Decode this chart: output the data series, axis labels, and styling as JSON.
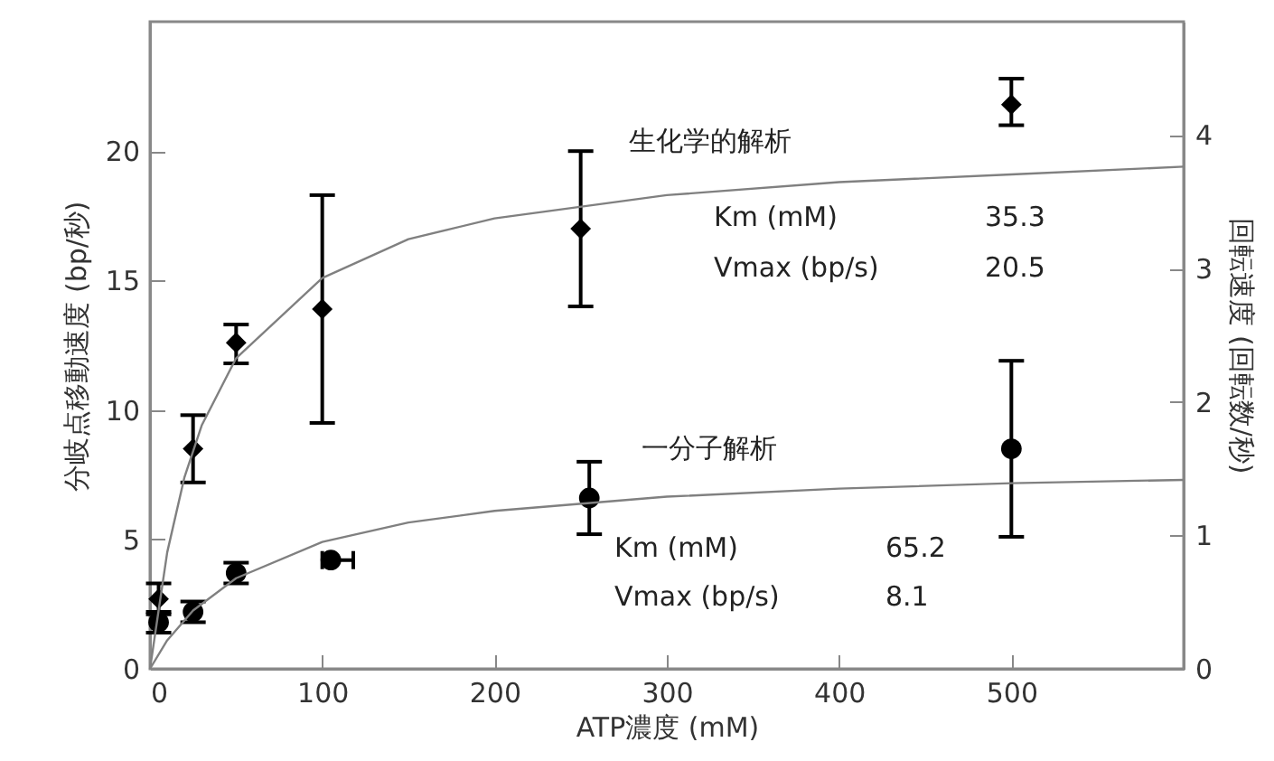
{
  "chart_data": {
    "type": "scatter",
    "xlabel": "ATP濃度 (mM)",
    "ylabel": "分岐点移動速度 (bp/秒)",
    "y2label": "回転速度 (回転数/秒)",
    "xlim": [
      0,
      600
    ],
    "xticks": [
      0,
      100,
      200,
      300,
      400,
      500
    ],
    "ylim": [
      0,
      25
    ],
    "yticks": [
      0,
      5,
      10,
      15,
      20
    ],
    "y2lim": [
      0,
      4.85
    ],
    "y2ticks": [
      0,
      1,
      2,
      3,
      4
    ],
    "grid": false,
    "annotations": [
      "生化学的解析",
      "Km (mM)",
      "35.3",
      "Vmax (bp/s)",
      "20.5",
      "一分子解析",
      "Km (mM)",
      "65.2",
      "Vmax (bp/s)",
      "8.1"
    ],
    "series": [
      {
        "type": "scatter",
        "marker": "diamond",
        "color": "#000000",
        "x": [
          5,
          25,
          50,
          100,
          250,
          500
        ],
        "values": [
          2.7,
          8.5,
          12.6,
          13.9,
          17.0,
          21.8
        ],
        "errors": [
          [
            2.1,
            3.3
          ],
          [
            7.2,
            9.8
          ],
          [
            11.8,
            13.3
          ],
          [
            9.5,
            18.3
          ],
          [
            14.0,
            20.0
          ],
          [
            21.0,
            22.8
          ]
        ]
      },
      {
        "type": "scatter",
        "marker": "circle",
        "color": "#000000",
        "x": [
          5,
          25,
          50,
          105,
          255,
          500
        ],
        "values": [
          1.8,
          2.2,
          3.7,
          4.2,
          6.6,
          8.5
        ],
        "errors": [
          [
            1.4,
            2.2
          ],
          [
            1.8,
            2.6
          ],
          [
            3.3,
            4.1
          ],
          null,
          [
            5.2,
            8.0
          ],
          [
            5.1,
            11.9
          ]
        ],
        "xerrors": [
          null,
          null,
          null,
          [
            100,
            118
          ],
          null,
          null
        ]
      },
      {
        "type": "line",
        "color": "#808080",
        "x": [
          0,
          10,
          20,
          30,
          50,
          100,
          150,
          200,
          300,
          400,
          500,
          600
        ],
        "values": [
          0,
          4.5,
          7.4,
          9.4,
          12.0,
          15.1,
          16.6,
          17.4,
          18.3,
          18.8,
          19.1,
          19.4
        ]
      },
      {
        "type": "line",
        "color": "#808080",
        "x": [
          0,
          10,
          25,
          50,
          100,
          150,
          200,
          300,
          400,
          500,
          600
        ],
        "values": [
          0,
          1.1,
          2.25,
          3.5,
          4.9,
          5.65,
          6.1,
          6.65,
          6.96,
          7.17,
          7.3
        ]
      }
    ]
  }
}
